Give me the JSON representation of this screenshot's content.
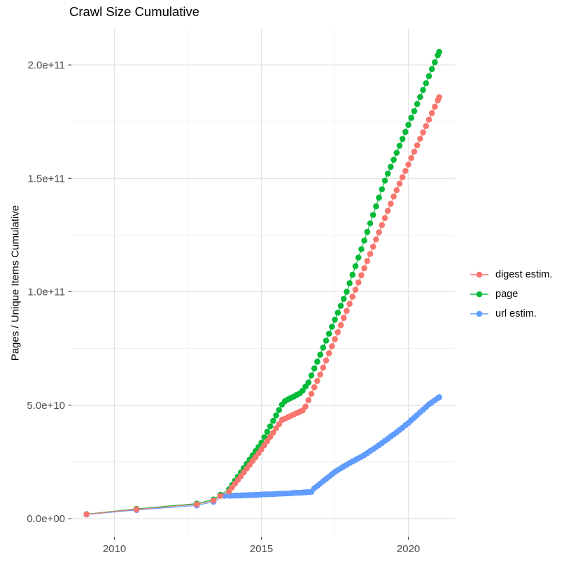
{
  "chart_data": {
    "type": "scatter",
    "title": "Crawl Size Cumulative",
    "xlabel": "",
    "ylabel": "Pages / Unique Items Cumulative",
    "note_units": "point values given in billions (1e9); y tick 5.0e+10 equals value 50",
    "xlim": [
      2008.45,
      2021.65
    ],
    "ylim_e9": [
      -8,
      216
    ],
    "grid": true,
    "x_ticks": {
      "values": [
        2010,
        2015,
        2020
      ],
      "labels": [
        "2010",
        "2015",
        "2020"
      ]
    },
    "x_minor_ticks": [
      2012.5,
      2017.5
    ],
    "y_ticks": {
      "values_e9": [
        0,
        50,
        100,
        150,
        200
      ],
      "labels": [
        "0.0e+00",
        "5.0e+10",
        "1.0e+11",
        "1.5e+11",
        "2.0e+11"
      ]
    },
    "y_minor_ticks_e9": [
      25,
      75,
      125,
      175
    ],
    "colors": {
      "grid_major": "#E3E3E3",
      "grid_minor": "#F0F0F0",
      "tick": "#333333",
      "axis_text": "#4D4D4D",
      "title_text": "#000000",
      "background": "#FFFFFF"
    },
    "legend": {
      "position": "right",
      "items": [
        "digest estim.",
        "page",
        "url estim."
      ]
    },
    "series": [
      {
        "id": "page",
        "name": "page",
        "color": "#00BA38",
        "points": [
          [
            2009.05,
            2.0
          ],
          [
            2010.75,
            4.3
          ],
          [
            2012.8,
            6.6
          ],
          [
            2013.37,
            8.4
          ],
          [
            2013.6,
            10.5
          ],
          [
            2013.9,
            12.9
          ],
          [
            2014.0,
            14.8
          ],
          [
            2014.1,
            16.7
          ],
          [
            2014.2,
            18.5
          ],
          [
            2014.3,
            20.4
          ],
          [
            2014.4,
            22.3
          ],
          [
            2014.5,
            24.2
          ],
          [
            2014.6,
            26.0
          ],
          [
            2014.7,
            27.9
          ],
          [
            2014.8,
            29.8
          ],
          [
            2014.9,
            31.6
          ],
          [
            2015.0,
            33.5
          ],
          [
            2015.1,
            35.9
          ],
          [
            2015.2,
            38.3
          ],
          [
            2015.3,
            40.7
          ],
          [
            2015.4,
            43.1
          ],
          [
            2015.5,
            45.5
          ],
          [
            2015.6,
            47.9
          ],
          [
            2015.7,
            50.3
          ],
          [
            2015.8,
            51.8
          ],
          [
            2015.9,
            52.5
          ],
          [
            2016.0,
            53.2
          ],
          [
            2016.1,
            53.8
          ],
          [
            2016.2,
            54.5
          ],
          [
            2016.3,
            55.2
          ],
          [
            2016.4,
            56.4
          ],
          [
            2016.5,
            58.2
          ],
          [
            2016.6,
            60.0
          ],
          [
            2016.7,
            63.1
          ],
          [
            2016.8,
            66.2
          ],
          [
            2016.9,
            69.2
          ],
          [
            2017.0,
            72.3
          ],
          [
            2017.1,
            75.4
          ],
          [
            2017.2,
            78.5
          ],
          [
            2017.3,
            81.5
          ],
          [
            2017.4,
            84.6
          ],
          [
            2017.5,
            87.7
          ],
          [
            2017.6,
            90.8
          ],
          [
            2017.7,
            93.8
          ],
          [
            2017.8,
            96.9
          ],
          [
            2017.9,
            100.0
          ],
          [
            2018.0,
            103.8
          ],
          [
            2018.1,
            107.5
          ],
          [
            2018.2,
            111.3
          ],
          [
            2018.3,
            115.1
          ],
          [
            2018.4,
            118.8
          ],
          [
            2018.5,
            122.6
          ],
          [
            2018.6,
            126.4
          ],
          [
            2018.7,
            130.2
          ],
          [
            2018.8,
            133.9
          ],
          [
            2018.9,
            137.7
          ],
          [
            2019.0,
            141.5
          ],
          [
            2019.1,
            145.2
          ],
          [
            2019.2,
            149.0
          ],
          [
            2019.3,
            152.1
          ],
          [
            2019.4,
            155.1
          ],
          [
            2019.5,
            158.2
          ],
          [
            2019.6,
            161.3
          ],
          [
            2019.7,
            164.4
          ],
          [
            2019.8,
            167.4
          ],
          [
            2019.9,
            170.5
          ],
          [
            2020.0,
            173.6
          ],
          [
            2020.1,
            176.7
          ],
          [
            2020.2,
            179.7
          ],
          [
            2020.3,
            182.8
          ],
          [
            2020.4,
            185.9
          ],
          [
            2020.5,
            189.0
          ],
          [
            2020.6,
            192.0
          ],
          [
            2020.7,
            195.1
          ],
          [
            2020.8,
            198.2
          ],
          [
            2020.9,
            201.2
          ],
          [
            2021.0,
            204.3
          ],
          [
            2021.05,
            205.8
          ]
        ]
      },
      {
        "id": "url",
        "name": "url estim.",
        "color": "#619CFF",
        "points": [
          [
            2009.05,
            1.8
          ],
          [
            2010.75,
            3.8
          ],
          [
            2012.8,
            5.8
          ],
          [
            2013.37,
            7.4
          ],
          [
            2013.75,
            10.0
          ],
          [
            2013.9,
            10.1
          ],
          [
            2014.0,
            10.1
          ],
          [
            2014.1,
            10.2
          ],
          [
            2014.2,
            10.2
          ],
          [
            2014.3,
            10.2
          ],
          [
            2014.4,
            10.3
          ],
          [
            2014.5,
            10.3
          ],
          [
            2014.6,
            10.4
          ],
          [
            2014.7,
            10.4
          ],
          [
            2014.8,
            10.5
          ],
          [
            2014.9,
            10.5
          ],
          [
            2015.0,
            10.6
          ],
          [
            2015.1,
            10.7
          ],
          [
            2015.2,
            10.7
          ],
          [
            2015.3,
            10.8
          ],
          [
            2015.4,
            10.8
          ],
          [
            2015.5,
            10.9
          ],
          [
            2015.6,
            11.0
          ],
          [
            2015.7,
            11.0
          ],
          [
            2015.8,
            11.1
          ],
          [
            2015.9,
            11.1
          ],
          [
            2016.0,
            11.2
          ],
          [
            2016.1,
            11.3
          ],
          [
            2016.2,
            11.4
          ],
          [
            2016.3,
            11.4
          ],
          [
            2016.4,
            11.5
          ],
          [
            2016.5,
            11.6
          ],
          [
            2016.6,
            11.7
          ],
          [
            2016.7,
            11.8
          ],
          [
            2016.8,
            13.4
          ],
          [
            2016.9,
            14.4
          ],
          [
            2017.0,
            15.4
          ],
          [
            2017.1,
            16.5
          ],
          [
            2017.2,
            17.5
          ],
          [
            2017.3,
            18.5
          ],
          [
            2017.4,
            19.6
          ],
          [
            2017.5,
            20.6
          ],
          [
            2017.6,
            21.4
          ],
          [
            2017.7,
            22.2
          ],
          [
            2017.8,
            23.0
          ],
          [
            2017.9,
            23.7
          ],
          [
            2018.0,
            24.5
          ],
          [
            2018.1,
            25.2
          ],
          [
            2018.2,
            25.9
          ],
          [
            2018.3,
            26.6
          ],
          [
            2018.4,
            27.3
          ],
          [
            2018.5,
            28.0
          ],
          [
            2018.6,
            28.9
          ],
          [
            2018.7,
            29.8
          ],
          [
            2018.8,
            30.6
          ],
          [
            2018.9,
            31.5
          ],
          [
            2019.0,
            32.4
          ],
          [
            2019.1,
            33.3
          ],
          [
            2019.2,
            34.3
          ],
          [
            2019.3,
            35.2
          ],
          [
            2019.4,
            36.2
          ],
          [
            2019.5,
            37.1
          ],
          [
            2019.6,
            38.1
          ],
          [
            2019.7,
            39.1
          ],
          [
            2019.8,
            40.1
          ],
          [
            2019.9,
            41.2
          ],
          [
            2020.0,
            42.2
          ],
          [
            2020.1,
            43.4
          ],
          [
            2020.2,
            44.5
          ],
          [
            2020.3,
            45.7
          ],
          [
            2020.4,
            46.9
          ],
          [
            2020.5,
            48.0
          ],
          [
            2020.6,
            49.2
          ],
          [
            2020.7,
            50.4
          ],
          [
            2020.8,
            51.3
          ],
          [
            2020.9,
            52.2
          ],
          [
            2021.0,
            53.1
          ],
          [
            2021.05,
            53.5
          ]
        ]
      },
      {
        "id": "digest",
        "name": "digest estim.",
        "color": "#F8766D",
        "points": [
          [
            2009.05,
            1.9
          ],
          [
            2010.75,
            4.1
          ],
          [
            2012.8,
            6.3
          ],
          [
            2013.37,
            8.0
          ],
          [
            2013.6,
            10.0
          ],
          [
            2013.9,
            12.0
          ],
          [
            2014.0,
            13.7
          ],
          [
            2014.1,
            15.4
          ],
          [
            2014.2,
            17.1
          ],
          [
            2014.3,
            18.7
          ],
          [
            2014.4,
            20.4
          ],
          [
            2014.5,
            22.1
          ],
          [
            2014.6,
            23.8
          ],
          [
            2014.7,
            25.5
          ],
          [
            2014.8,
            27.1
          ],
          [
            2014.9,
            28.8
          ],
          [
            2015.0,
            30.5
          ],
          [
            2015.1,
            32.4
          ],
          [
            2015.2,
            34.2
          ],
          [
            2015.3,
            36.1
          ],
          [
            2015.4,
            37.9
          ],
          [
            2015.5,
            39.8
          ],
          [
            2015.6,
            41.6
          ],
          [
            2015.7,
            43.5
          ],
          [
            2015.8,
            44.1
          ],
          [
            2015.9,
            44.7
          ],
          [
            2016.0,
            45.3
          ],
          [
            2016.1,
            45.9
          ],
          [
            2016.2,
            46.5
          ],
          [
            2016.3,
            47.1
          ],
          [
            2016.4,
            47.7
          ],
          [
            2016.5,
            49.4
          ],
          [
            2016.6,
            52.2
          ],
          [
            2016.7,
            55.0
          ],
          [
            2016.8,
            57.9
          ],
          [
            2016.9,
            60.7
          ],
          [
            2017.0,
            63.5
          ],
          [
            2017.1,
            66.6
          ],
          [
            2017.2,
            69.7
          ],
          [
            2017.3,
            72.9
          ],
          [
            2017.4,
            76.0
          ],
          [
            2017.5,
            79.1
          ],
          [
            2017.6,
            82.2
          ],
          [
            2017.7,
            85.3
          ],
          [
            2017.8,
            88.5
          ],
          [
            2017.9,
            91.6
          ],
          [
            2018.0,
            94.7
          ],
          [
            2018.1,
            97.8
          ],
          [
            2018.2,
            100.9
          ],
          [
            2018.3,
            104.1
          ],
          [
            2018.4,
            107.3
          ],
          [
            2018.5,
            110.4
          ],
          [
            2018.6,
            113.6
          ],
          [
            2018.7,
            116.7
          ],
          [
            2018.8,
            119.9
          ],
          [
            2018.9,
            123.1
          ],
          [
            2019.0,
            126.2
          ],
          [
            2019.1,
            129.4
          ],
          [
            2019.2,
            132.5
          ],
          [
            2019.3,
            135.7
          ],
          [
            2019.4,
            138.8
          ],
          [
            2019.5,
            142.0
          ],
          [
            2019.6,
            144.8
          ],
          [
            2019.7,
            147.7
          ],
          [
            2019.8,
            150.5
          ],
          [
            2019.9,
            153.3
          ],
          [
            2020.0,
            156.1
          ],
          [
            2020.1,
            159.0
          ],
          [
            2020.2,
            161.8
          ],
          [
            2020.3,
            164.6
          ],
          [
            2020.4,
            167.5
          ],
          [
            2020.5,
            170.3
          ],
          [
            2020.6,
            173.1
          ],
          [
            2020.7,
            175.9
          ],
          [
            2020.8,
            178.8
          ],
          [
            2020.9,
            181.6
          ],
          [
            2021.0,
            184.4
          ],
          [
            2021.05,
            185.8
          ]
        ]
      }
    ],
    "legend_order": [
      "digest estim.",
      "page",
      "url estim."
    ]
  }
}
